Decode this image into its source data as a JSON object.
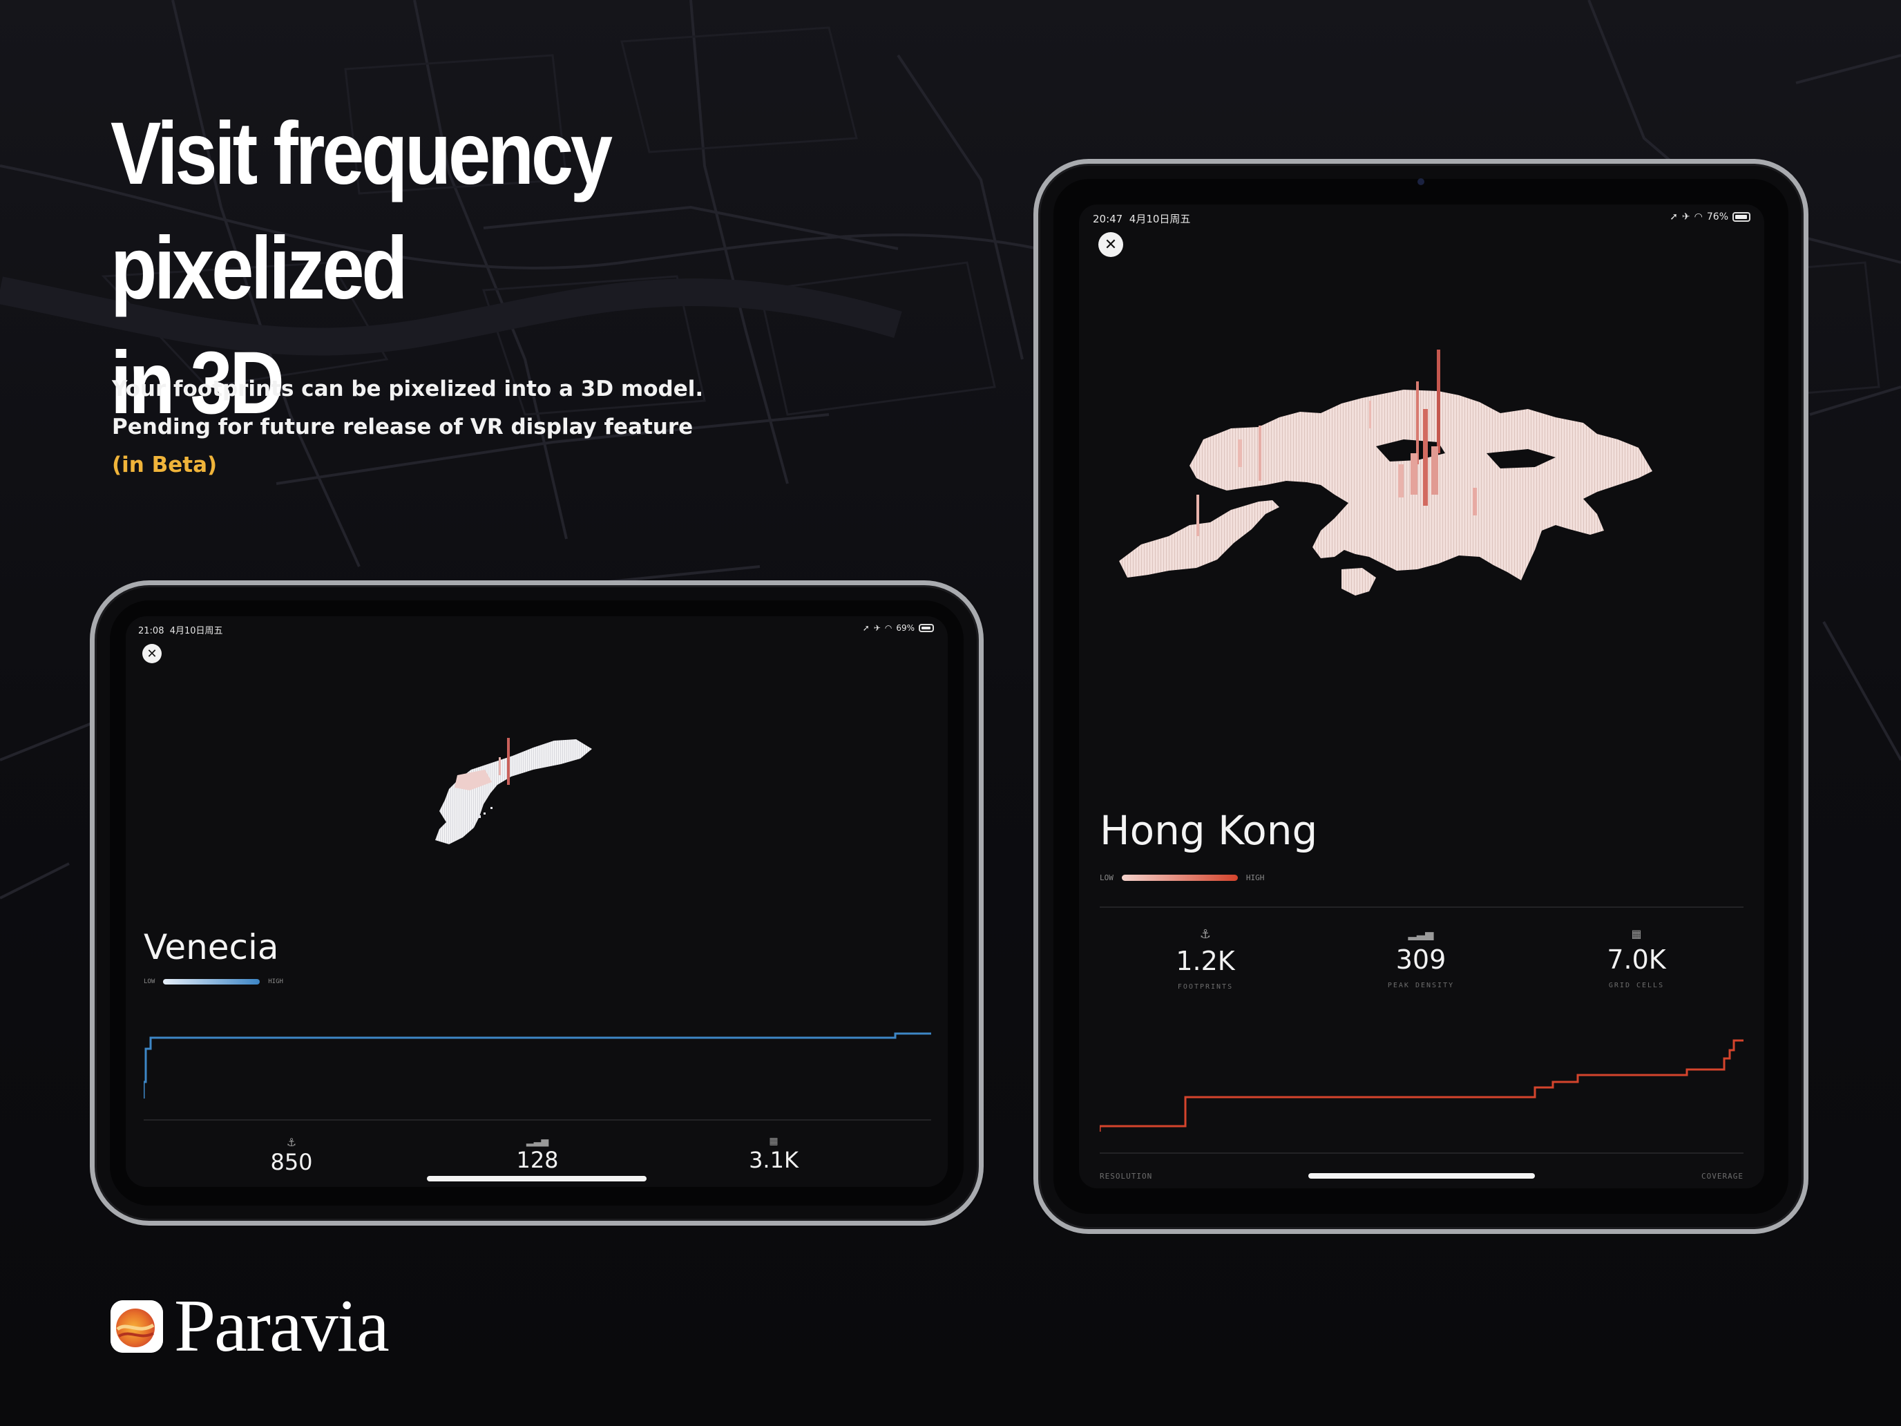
{
  "headline": {
    "line1": "Visit frequency pixelized",
    "line2": "in 3D"
  },
  "description": {
    "line1": "Your footprints can be pixelized into a 3D model.",
    "line2": "Pending for future release of VR display feature",
    "beta": "(in Beta)"
  },
  "colors": {
    "beta": "#f0b43a",
    "venecia_accent": "#3d86c6",
    "hongkong_accent": "#d4442c"
  },
  "venecia": {
    "status": {
      "time": "21:08",
      "date": "4月10日周五",
      "battery": "69%",
      "battery_level": 0.69
    },
    "close_icon": "close-icon",
    "title": "Venecia",
    "legend": {
      "low": "LOW",
      "high": "HIGH"
    },
    "stats": [
      {
        "icon": "footprint-icon",
        "value": "850"
      },
      {
        "icon": "bar-chart-icon",
        "value": "128"
      },
      {
        "icon": "grid-icon",
        "value": "3.1K"
      }
    ]
  },
  "hongkong": {
    "status": {
      "time": "20:47",
      "date": "4月10日周五",
      "battery": "76%",
      "battery_level": 0.76
    },
    "close_icon": "close-icon",
    "title": "Hong Kong",
    "legend": {
      "low": "LOW",
      "high": "HIGH"
    },
    "stats": [
      {
        "icon": "footprint-icon",
        "value": "1.2K",
        "label": "FOOTPRINTS"
      },
      {
        "icon": "bar-chart-icon",
        "value": "309",
        "label": "PEAK DENSITY"
      },
      {
        "icon": "grid-icon",
        "value": "7.0K",
        "label": "GRID CELLS"
      }
    ],
    "axis": {
      "left": "RESOLUTION",
      "right": "COVERAGE"
    }
  },
  "brand": {
    "name": "Paravia"
  }
}
